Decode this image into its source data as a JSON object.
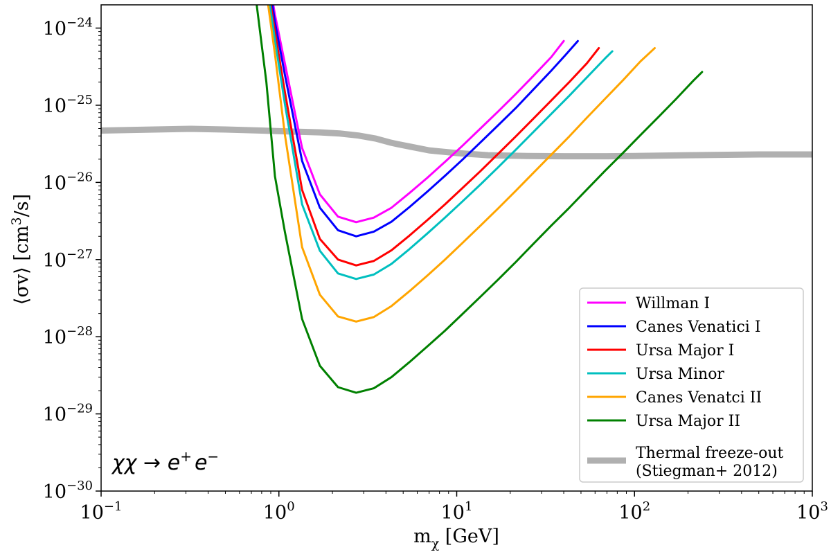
{
  "chart_data": {
    "type": "line",
    "xlabel": "m_χ [GeV]",
    "xlabel_parts": {
      "main": "m",
      "sub": "χ",
      "unit": " [GeV]"
    },
    "ylabel": "⟨σv⟩ [cm³/s]",
    "ylabel_parts": {
      "pre": "⟨σv⟩ [cm",
      "sup": "3",
      "post": "/s]"
    },
    "xscale": "log",
    "yscale": "log",
    "xlim": [
      0.1,
      1000
    ],
    "ylim": [
      1e-30,
      2e-24
    ],
    "x_ticks": [
      {
        "value": 0.1,
        "base": "10",
        "exp": "−1"
      },
      {
        "value": 1,
        "base": "10",
        "exp": "0"
      },
      {
        "value": 10,
        "base": "10",
        "exp": "1"
      },
      {
        "value": 100,
        "base": "10",
        "exp": "2"
      },
      {
        "value": 1000,
        "base": "10",
        "exp": "3"
      }
    ],
    "y_ticks": [
      {
        "value": 1e-30,
        "base": "10",
        "exp": "−30"
      },
      {
        "value": 1e-29,
        "base": "10",
        "exp": "−29"
      },
      {
        "value": 1e-28,
        "base": "10",
        "exp": "−28"
      },
      {
        "value": 1e-27,
        "base": "10",
        "exp": "−27"
      },
      {
        "value": 1e-26,
        "base": "10",
        "exp": "−26"
      },
      {
        "value": 1e-25,
        "base": "10",
        "exp": "−25"
      },
      {
        "value": 1e-24,
        "base": "10",
        "exp": "−24"
      }
    ],
    "annotation": "χχ → e⁺e⁻",
    "annotation_parts": {
      "lhs": "χχ → e",
      "sup1": "+",
      "mid": "e",
      "sup2": "−"
    },
    "legend_position": "lower-right",
    "series": [
      {
        "name": "Willman I",
        "color": "#ff00ff",
        "x": [
          0.93,
          0.95,
          1.08,
          1.35,
          1.7,
          2.15,
          2.72,
          3.42,
          4.3,
          5.43,
          6.84,
          8.6,
          10.8,
          13.6,
          17.1,
          21.5,
          27,
          34,
          40
        ],
        "y": [
          2e-24,
          1.5e-24,
          3.5e-25,
          2.8e-26,
          7e-27,
          3.6e-27,
          3.05e-27,
          3.5e-27,
          4.7e-27,
          7.3e-27,
          1.15e-26,
          1.85e-26,
          3e-26,
          5e-26,
          8.3e-26,
          1.4e-25,
          2.4e-25,
          4.2e-25,
          6.8e-25
        ]
      },
      {
        "name": "Canes Venatici I",
        "color": "#0000ff",
        "x": [
          0.92,
          0.95,
          1.08,
          1.35,
          1.7,
          2.15,
          2.72,
          3.42,
          4.3,
          5.43,
          6.84,
          8.6,
          10.8,
          13.6,
          17.1,
          21.5,
          27,
          34,
          41,
          48
        ],
        "y": [
          2e-24,
          1.2e-24,
          2.5e-25,
          1.9e-26,
          4.7e-27,
          2.4e-27,
          2e-27,
          2.3e-27,
          3.1e-27,
          4.8e-27,
          7.6e-27,
          1.22e-26,
          1.98e-26,
          3.3e-26,
          5.5e-26,
          9.2e-26,
          1.6e-25,
          2.8e-25,
          4.5e-25,
          6.8e-25
        ]
      },
      {
        "name": "Ursa Major I",
        "color": "#ff0000",
        "x": [
          0.9,
          0.95,
          1.08,
          1.35,
          1.7,
          2.15,
          2.72,
          3.42,
          4.3,
          5.43,
          6.84,
          8.6,
          10.8,
          13.6,
          17.1,
          21.5,
          27,
          34,
          43,
          54,
          63
        ],
        "y": [
          2e-24,
          9e-25,
          1.5e-25,
          8e-27,
          1.85e-27,
          1e-27,
          8.4e-28,
          9.6e-28,
          1.32e-27,
          2.05e-27,
          3.25e-27,
          5.2e-27,
          8.5e-27,
          1.4e-26,
          2.35e-26,
          3.95e-26,
          6.7e-26,
          1.15e-25,
          2e-25,
          3.5e-25,
          5.5e-25
        ]
      },
      {
        "name": "Ursa Minor",
        "color": "#00bfbf",
        "x": [
          0.89,
          0.95,
          1.08,
          1.35,
          1.7,
          2.15,
          2.72,
          3.42,
          4.3,
          5.43,
          6.84,
          8.6,
          10.8,
          13.6,
          17.1,
          21.5,
          27,
          34,
          43,
          54,
          68,
          75
        ],
        "y": [
          2e-24,
          7e-25,
          1.05e-25,
          5.2e-27,
          1.3e-27,
          6.6e-28,
          5.6e-28,
          6.4e-28,
          8.8e-28,
          1.37e-27,
          2.18e-27,
          3.5e-27,
          5.7e-27,
          9.4e-27,
          1.57e-26,
          2.65e-26,
          4.5e-26,
          7.7e-26,
          1.33e-25,
          2.3e-25,
          4e-25,
          5e-25
        ]
      },
      {
        "name": "Canes Venatci II",
        "color": "#ffa500",
        "x": [
          0.87,
          0.95,
          1.08,
          1.35,
          1.7,
          2.15,
          2.72,
          3.42,
          4.3,
          5.43,
          6.84,
          8.6,
          10.8,
          13.6,
          17.1,
          21.5,
          27,
          34,
          43,
          54,
          68,
          86,
          108,
          130
        ],
        "y": [
          2e-24,
          4.6e-25,
          4.2e-26,
          1.45e-27,
          3.5e-28,
          1.83e-28,
          1.57e-28,
          1.8e-28,
          2.5e-28,
          3.9e-28,
          6.2e-28,
          1e-27,
          1.65e-27,
          2.75e-27,
          4.6e-27,
          7.8e-27,
          1.33e-26,
          2.28e-26,
          3.95e-26,
          6.9e-26,
          1.2e-25,
          2.1e-25,
          3.7e-25,
          5.5e-25
        ]
      },
      {
        "name": "Ursa Major II",
        "color": "#008000",
        "x": [
          0.75,
          0.85,
          0.95,
          1.08,
          1.35,
          1.7,
          2.15,
          2.72,
          3.42,
          4.3,
          5.43,
          6.84,
          8.6,
          10.8,
          13.6,
          17.1,
          21.5,
          27,
          34,
          43,
          54,
          68,
          86,
          108,
          136,
          171,
          215,
          240
        ],
        "y": [
          2e-24,
          2e-25,
          1.2e-26,
          2.3e-27,
          1.7e-28,
          4.2e-29,
          2.22e-29,
          1.88e-29,
          2.15e-29,
          3e-29,
          4.7e-29,
          7.5e-29,
          1.2e-28,
          1.98e-28,
          3.3e-28,
          5.5e-28,
          9.3e-28,
          1.6e-27,
          2.75e-27,
          4.7e-27,
          8.1e-27,
          1.4e-26,
          2.4e-26,
          4.1e-26,
          7e-26,
          1.2e-25,
          2.1e-25,
          2.7e-25
        ]
      },
      {
        "name": "Thermal freeze-out",
        "name_line2": "(Stiegman+ 2012)",
        "color": "#b0b0b0",
        "thick": true,
        "x": [
          0.1,
          0.2,
          0.32,
          0.5,
          0.8,
          1.2,
          1.7,
          2.2,
          2.8,
          3.5,
          4.2,
          4.6,
          5.5,
          7,
          10,
          15,
          25,
          40,
          70,
          100,
          200,
          500,
          1000
        ],
        "y": [
          4.7e-26,
          4.85e-26,
          4.95e-26,
          4.85e-26,
          4.7e-26,
          4.55e-26,
          4.45e-26,
          4.3e-26,
          4.05e-26,
          3.7e-26,
          3.3e-26,
          3.15e-26,
          2.9e-26,
          2.6e-26,
          2.4e-26,
          2.25e-26,
          2.2e-26,
          2.18e-26,
          2.18e-26,
          2.2e-26,
          2.25e-26,
          2.3e-26,
          2.3e-26
        ]
      }
    ]
  }
}
